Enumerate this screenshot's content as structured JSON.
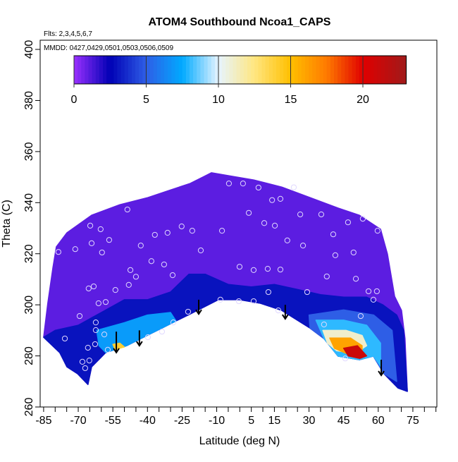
{
  "chart_data": {
    "type": "heatmap",
    "title": "ATOM4 Southbound Ncoa1_CAPS",
    "subtitle_flights": "Flts: 2,3,4,5,6,7",
    "subtitle_dates": "MMDD: 0427,0429,0501,0503,0506,0509",
    "xlabel": "Latitude (deg N)",
    "ylabel": "Theta (C)",
    "xlim": [
      -86.5,
      85.4
    ],
    "ylim": [
      260,
      403.6
    ],
    "x_ticks": [
      -85,
      -70,
      -55,
      -40,
      -25,
      -10,
      5,
      15,
      30,
      45,
      60,
      75
    ],
    "x_minor_step": 5,
    "y_ticks": [
      260,
      280,
      300,
      320,
      340,
      360,
      380,
      400
    ],
    "colorbar": {
      "range": [
        0,
        23
      ],
      "ticks": [
        0,
        5,
        10,
        15,
        20
      ],
      "stops": [
        [
          0,
          "#9a30ff"
        ],
        [
          2.5,
          "#0000b4"
        ],
        [
          5,
          "#2e5ee6"
        ],
        [
          7.5,
          "#00aaff"
        ],
        [
          10,
          "#e6f4ff"
        ],
        [
          12.5,
          "#ffe680"
        ],
        [
          15,
          "#ffbf00"
        ],
        [
          17.5,
          "#ff7a00"
        ],
        [
          20,
          "#e00000"
        ],
        [
          23,
          "#a01a1a"
        ]
      ]
    },
    "regions": [
      {
        "name": "data-coverage",
        "value": 1,
        "polygon": [
          [
            -85,
            287.3
          ],
          [
            -83.2,
            300.6
          ],
          [
            -81,
            314.4
          ],
          [
            -79.5,
            322.7
          ],
          [
            -74.9,
            328.2
          ],
          [
            -64.2,
            335.1
          ],
          [
            -52,
            339.2
          ],
          [
            -39.8,
            342
          ],
          [
            -30.6,
            344.8
          ],
          [
            -21.5,
            347.5
          ],
          [
            -15.4,
            350.3
          ],
          [
            -12.3,
            351.7
          ],
          [
            -3.2,
            350.3
          ],
          [
            6,
            348.9
          ],
          [
            18.2,
            346.1
          ],
          [
            30.4,
            342
          ],
          [
            42.6,
            337.9
          ],
          [
            51.8,
            335.1
          ],
          [
            61,
            329.6
          ],
          [
            64,
            319.9
          ],
          [
            67.1,
            303.3
          ],
          [
            70.1,
            297.8
          ],
          [
            71.6,
            286.8
          ],
          [
            72.6,
            266.1
          ],
          [
            68.6,
            267.4
          ],
          [
            62.5,
            273
          ],
          [
            57.9,
            279.9
          ],
          [
            51.8,
            278.5
          ],
          [
            42.6,
            279.9
          ],
          [
            36.5,
            286.8
          ],
          [
            30.4,
            290.9
          ],
          [
            18.2,
            297.8
          ],
          [
            9,
            300.6
          ],
          [
            -0.1,
            302
          ],
          [
            -9.3,
            302
          ],
          [
            -15.4,
            299.2
          ],
          [
            -21.5,
            296.4
          ],
          [
            -27.6,
            293.7
          ],
          [
            -33.7,
            290.9
          ],
          [
            -39.8,
            288.2
          ],
          [
            -49,
            284
          ],
          [
            -58.1,
            281.3
          ],
          [
            -64.2,
            275.7
          ],
          [
            -65.8,
            268.8
          ],
          [
            -70.3,
            273
          ],
          [
            -74.9,
            275.7
          ],
          [
            -78,
            281.3
          ]
        ]
      },
      {
        "name": "low-band",
        "value": 3,
        "polygon": [
          [
            -85,
            287.3
          ],
          [
            -80,
            290
          ],
          [
            -70,
            292
          ],
          [
            -60,
            297
          ],
          [
            -50,
            302
          ],
          [
            -40,
            302
          ],
          [
            -30,
            305
          ],
          [
            -22,
            312
          ],
          [
            -15,
            312
          ],
          [
            -5,
            308
          ],
          [
            5,
            307
          ],
          [
            15,
            308
          ],
          [
            25,
            306
          ],
          [
            35,
            304
          ],
          [
            45,
            303
          ],
          [
            55,
            303
          ],
          [
            62,
            300
          ],
          [
            68,
            296
          ],
          [
            71,
            290
          ],
          [
            72.6,
            266.1
          ],
          [
            68.6,
            267.4
          ],
          [
            62.5,
            273
          ],
          [
            57.9,
            279.9
          ],
          [
            51.8,
            278.5
          ],
          [
            42.6,
            279.9
          ],
          [
            36.5,
            286.8
          ],
          [
            30.4,
            290.9
          ],
          [
            18.2,
            297.8
          ],
          [
            9,
            300.6
          ],
          [
            -0.1,
            302
          ],
          [
            -9.3,
            302
          ],
          [
            -15.4,
            299.2
          ],
          [
            -21.5,
            296.4
          ],
          [
            -27.6,
            293.7
          ],
          [
            -33.7,
            290.9
          ],
          [
            -39.8,
            288.2
          ],
          [
            -49,
            284
          ],
          [
            -58.1,
            281.3
          ],
          [
            -64.2,
            275.7
          ],
          [
            -65.8,
            268.8
          ],
          [
            -70.3,
            273
          ],
          [
            -74.9,
            275.7
          ],
          [
            -78,
            281.3
          ]
        ]
      },
      {
        "name": "mid-right",
        "value": 5,
        "polygon": [
          [
            30,
            296
          ],
          [
            45,
            298
          ],
          [
            58,
            296
          ],
          [
            66,
            290
          ],
          [
            68,
            270
          ],
          [
            62.5,
            273
          ],
          [
            57.9,
            279.9
          ],
          [
            51.8,
            278.5
          ],
          [
            42.6,
            279.9
          ],
          [
            36.5,
            286.8
          ],
          [
            30.4,
            290.9
          ]
        ]
      },
      {
        "name": "cyan-right",
        "value": 8,
        "polygon": [
          [
            33,
            294
          ],
          [
            45,
            294
          ],
          [
            55,
            292
          ],
          [
            61,
            285
          ],
          [
            61,
            276
          ],
          [
            57.9,
            279.9
          ],
          [
            51.8,
            278.5
          ],
          [
            42.6,
            279.9
          ],
          [
            36.5,
            286.8
          ]
        ]
      },
      {
        "name": "pale-right",
        "value": 11,
        "polygon": [
          [
            36,
            290
          ],
          [
            46,
            290
          ],
          [
            53,
            288
          ],
          [
            55,
            284
          ],
          [
            50,
            281
          ],
          [
            42,
            282
          ],
          [
            38,
            285
          ]
        ]
      },
      {
        "name": "orange-right",
        "value": 16,
        "polygon": [
          [
            39,
            287
          ],
          [
            48,
            287
          ],
          [
            53,
            284
          ],
          [
            53,
            281
          ],
          [
            46,
            281
          ],
          [
            41,
            283
          ]
        ]
      },
      {
        "name": "red-right",
        "value": 21,
        "polygon": [
          [
            45,
            283
          ],
          [
            51,
            284
          ],
          [
            55,
            280
          ],
          [
            52,
            279
          ],
          [
            47,
            280
          ]
        ]
      },
      {
        "name": "cyan-left",
        "value": 7,
        "polygon": [
          [
            -62,
            290
          ],
          [
            -50,
            293
          ],
          [
            -40,
            296
          ],
          [
            -30,
            297
          ],
          [
            -27.6,
            293.7
          ],
          [
            -33.7,
            290.9
          ],
          [
            -39.8,
            288.2
          ],
          [
            -49,
            284
          ],
          [
            -58.1,
            281.3
          ],
          [
            -61,
            284
          ]
        ]
      },
      {
        "name": "yellow-left",
        "value": 14,
        "polygon": [
          [
            -55,
            284.5
          ],
          [
            -52,
            285
          ],
          [
            -50,
            283.5
          ],
          [
            -54,
            282.5
          ]
        ]
      }
    ],
    "arrows": [
      {
        "lat": -53.5,
        "from": 289.5,
        "to": 281.3
      },
      {
        "lat": -43.5,
        "from": 290,
        "to": 284
      },
      {
        "lat": -17.8,
        "from": 302,
        "to": 296.4
      },
      {
        "lat": 19.7,
        "from": 300,
        "to": 294.5
      },
      {
        "lat": 61.3,
        "from": 278.5,
        "to": 272.4
      }
    ],
    "samples": [
      [
        -4.7,
        347.5
      ],
      [
        1.4,
        347.5
      ],
      [
        8.1,
        345.9
      ],
      [
        14,
        341
      ],
      [
        17.6,
        341.5
      ],
      [
        23.4,
        346
      ],
      [
        3.9,
        336
      ],
      [
        10.6,
        332
      ],
      [
        15.2,
        331
      ],
      [
        26.2,
        335.4
      ],
      [
        35.3,
        335.4
      ],
      [
        46.9,
        332.3
      ],
      [
        53.3,
        333.7
      ],
      [
        40.5,
        327.6
      ],
      [
        20.6,
        325.2
      ],
      [
        27.4,
        323.2
      ],
      [
        -7.7,
        329
      ],
      [
        -20.6,
        329
      ],
      [
        -25.2,
        330.7
      ],
      [
        -31.3,
        328.2
      ],
      [
        -36.8,
        327.4
      ],
      [
        -42.9,
        323.2
      ],
      [
        -48.7,
        337.3
      ],
      [
        -60.3,
        329.6
      ],
      [
        -64.8,
        331
      ],
      [
        -64.2,
        324.1
      ],
      [
        -56.6,
        325.4
      ],
      [
        -71.3,
        321.8
      ],
      [
        -78.6,
        320.7
      ],
      [
        -59.7,
        320.5
      ],
      [
        -47.4,
        313.6
      ],
      [
        -38.3,
        317.1
      ],
      [
        -32.8,
        315.8
      ],
      [
        -29.1,
        311.6
      ],
      [
        -16.9,
        321.3
      ],
      [
        -0.1,
        314.9
      ],
      [
        6,
        313.6
      ],
      [
        12.1,
        314.1
      ],
      [
        17.6,
        313.8
      ],
      [
        41.4,
        319.4
      ],
      [
        49.3,
        320.5
      ],
      [
        37.7,
        311.1
      ],
      [
        50.3,
        310.2
      ],
      [
        59.7,
        329
      ],
      [
        55.8,
        305.3
      ],
      [
        29.2,
        305
      ],
      [
        12.4,
        305
      ],
      [
        -8.4,
        302
      ],
      [
        -0.4,
        301.4
      ],
      [
        6,
        301.4
      ],
      [
        16.7,
        297.8
      ],
      [
        -22.4,
        297.3
      ],
      [
        -28.8,
        293.1
      ],
      [
        -33.7,
        289.5
      ],
      [
        -39.8,
        287.3
      ],
      [
        -48.1,
        307.8
      ],
      [
        -53.9,
        305.8
      ],
      [
        -45,
        311
      ],
      [
        -58.1,
        301.1
      ],
      [
        -61.2,
        300.6
      ],
      [
        -65.5,
        306.4
      ],
      [
        -63.3,
        307.2
      ],
      [
        -69.4,
        295.6
      ],
      [
        -62.4,
        293.1
      ],
      [
        -62.4,
        290.1
      ],
      [
        -58.7,
        288.4
      ],
      [
        -65.8,
        283.2
      ],
      [
        -65.2,
        278.2
      ],
      [
        -68.2,
        277.7
      ],
      [
        -67,
        275.2
      ],
      [
        -75.8,
        286.8
      ],
      [
        -62.7,
        284.6
      ],
      [
        -57.2,
        282.4
      ],
      [
        36.5,
        292.3
      ],
      [
        45.7,
        279
      ],
      [
        59.4,
        305.3
      ],
      [
        57.9,
        302
      ],
      [
        52.4,
        295.6
      ]
    ]
  }
}
